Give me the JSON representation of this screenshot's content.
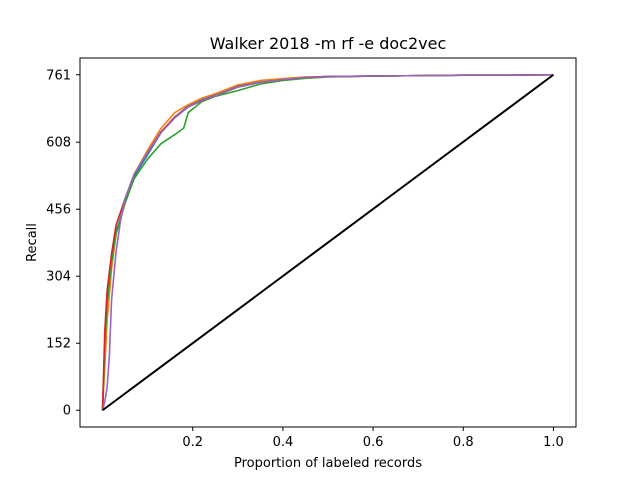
{
  "chart_data": {
    "type": "line",
    "title": "Walker 2018 -m rf -e doc2vec",
    "xlabel": "Proportion of labeled records",
    "ylabel": "Recall",
    "xlim": [
      -0.05,
      1.05
    ],
    "ylim": [
      -38,
      799
    ],
    "x_ticks": [
      0.2,
      0.4,
      0.6,
      0.8,
      1.0
    ],
    "x_tick_labels": [
      "0.2",
      "0.4",
      "0.6",
      "0.8",
      "1.0"
    ],
    "y_ticks": [
      0,
      152,
      304,
      456,
      608,
      761
    ],
    "y_tick_labels": [
      "0",
      "152",
      "304",
      "456",
      "608",
      "761"
    ],
    "grid": false,
    "legend": "none",
    "series": [
      {
        "color": "#1f77b4",
        "x": [
          0,
          0.005,
          0.01,
          0.02,
          0.03,
          0.05,
          0.07,
          0.1,
          0.13,
          0.16,
          0.19,
          0.22,
          0.25,
          0.3,
          0.35,
          0.4,
          0.45,
          0.5,
          0.6,
          0.7,
          0.8,
          0.9,
          1.0
        ],
        "values": [
          0,
          150,
          250,
          340,
          405,
          470,
          530,
          580,
          630,
          665,
          690,
          705,
          715,
          735,
          745,
          750,
          755,
          757,
          758,
          759,
          760,
          760,
          761
        ]
      },
      {
        "color": "#ff7f0e",
        "x": [
          0,
          0.005,
          0.01,
          0.02,
          0.03,
          0.05,
          0.07,
          0.1,
          0.13,
          0.16,
          0.19,
          0.22,
          0.25,
          0.3,
          0.35,
          0.4,
          0.45,
          0.5,
          0.6,
          0.7,
          0.8,
          0.9,
          1.0
        ],
        "values": [
          0,
          100,
          200,
          320,
          400,
          470,
          535,
          590,
          640,
          675,
          693,
          708,
          718,
          738,
          748,
          752,
          756,
          757,
          758,
          759,
          760,
          760,
          761
        ]
      },
      {
        "color": "#2ca02c",
        "x": [
          0,
          0.005,
          0.01,
          0.02,
          0.03,
          0.05,
          0.07,
          0.1,
          0.13,
          0.16,
          0.18,
          0.19,
          0.22,
          0.25,
          0.3,
          0.35,
          0.4,
          0.45,
          0.5,
          0.6,
          0.7,
          0.8,
          0.9,
          1.0
        ],
        "values": [
          0,
          150,
          240,
          335,
          400,
          470,
          525,
          570,
          605,
          625,
          640,
          675,
          700,
          712,
          725,
          740,
          748,
          753,
          756,
          758,
          759,
          760,
          760,
          761
        ]
      },
      {
        "color": "#d62728",
        "x": [
          0,
          0.005,
          0.01,
          0.02,
          0.03,
          0.05,
          0.07,
          0.1,
          0.13,
          0.16,
          0.19,
          0.22,
          0.25,
          0.3,
          0.35,
          0.4,
          0.45,
          0.5,
          0.6,
          0.7,
          0.8,
          0.9,
          1.0
        ],
        "values": [
          0,
          180,
          270,
          355,
          420,
          480,
          535,
          585,
          632,
          665,
          688,
          702,
          713,
          733,
          744,
          750,
          755,
          757,
          758,
          759,
          760,
          760,
          761
        ]
      },
      {
        "color": "#9467bd",
        "x": [
          0,
          0.005,
          0.01,
          0.015,
          0.02,
          0.03,
          0.04,
          0.05,
          0.07,
          0.1,
          0.13,
          0.16,
          0.19,
          0.22,
          0.25,
          0.3,
          0.35,
          0.4,
          0.45,
          0.5,
          0.6,
          0.7,
          0.8,
          0.9,
          1.0
        ],
        "values": [
          0,
          20,
          50,
          120,
          250,
          360,
          430,
          480,
          535,
          585,
          630,
          663,
          688,
          703,
          713,
          733,
          744,
          750,
          755,
          757,
          758,
          759,
          760,
          760,
          761
        ]
      },
      {
        "color": "#000000",
        "x": [
          0,
          1.0
        ],
        "values": [
          0,
          761
        ]
      }
    ]
  }
}
